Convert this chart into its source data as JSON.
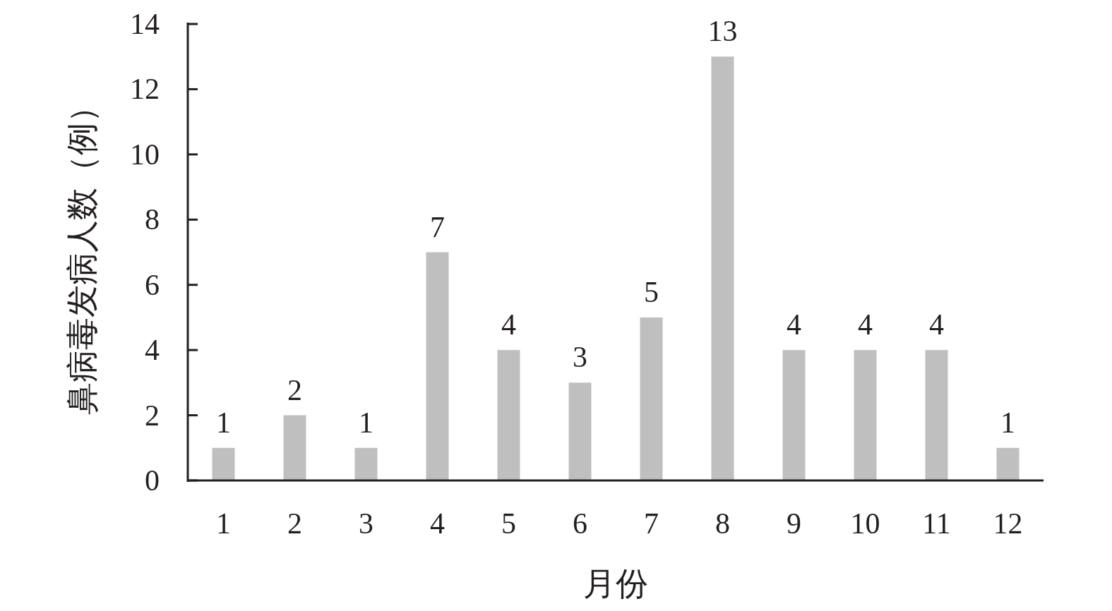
{
  "chart_data": {
    "type": "bar",
    "xlabel": "月份",
    "ylabel": "鼻病毒发病人数（例）",
    "categories": [
      "1",
      "2",
      "3",
      "4",
      "5",
      "6",
      "7",
      "8",
      "9",
      "10",
      "11",
      "12"
    ],
    "values": [
      1,
      2,
      1,
      7,
      4,
      3,
      5,
      13,
      4,
      4,
      4,
      1
    ],
    "color": "#bfbfbf",
    "ylim": [
      0,
      14
    ],
    "yticks": [
      0,
      2,
      4,
      6,
      8,
      10,
      12,
      14
    ],
    "data_labels": true
  }
}
